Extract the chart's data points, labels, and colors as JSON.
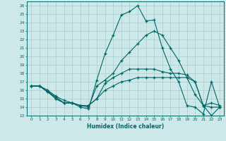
{
  "title": "",
  "xlabel": "Humidex (Indice chaleur)",
  "bg_color": "#cce8e8",
  "line_color": "#006666",
  "grid_color": "#aacccc",
  "x_values": [
    0,
    1,
    2,
    3,
    4,
    5,
    6,
    7,
    8,
    9,
    10,
    11,
    12,
    13,
    14,
    15,
    16,
    17,
    18,
    19,
    20,
    21,
    22,
    23
  ],
  "series": {
    "max": [
      16.5,
      16.5,
      16.0,
      15.0,
      14.5,
      14.5,
      14.0,
      13.8,
      17.2,
      20.3,
      22.5,
      24.9,
      25.3,
      26.0,
      24.2,
      24.3,
      21.0,
      18.5,
      17.0,
      14.2,
      14.0,
      13.2,
      17.0,
      14.0
    ],
    "avg2": [
      16.5,
      16.5,
      16.0,
      15.3,
      14.8,
      14.5,
      14.2,
      14.0,
      16.5,
      17.2,
      18.0,
      19.5,
      20.5,
      21.5,
      22.5,
      23.0,
      22.5,
      21.0,
      19.5,
      17.5,
      15.5,
      14.2,
      14.5,
      14.2
    ],
    "avg1": [
      16.5,
      16.5,
      15.8,
      15.2,
      14.5,
      14.5,
      14.2,
      14.2,
      15.0,
      16.8,
      17.5,
      18.0,
      18.5,
      18.5,
      18.5,
      18.5,
      18.2,
      18.0,
      18.0,
      17.8,
      17.0,
      14.2,
      14.0,
      14.0
    ],
    "min": [
      16.5,
      16.5,
      15.8,
      15.0,
      14.5,
      14.5,
      14.2,
      14.2,
      15.0,
      16.0,
      16.5,
      17.0,
      17.2,
      17.5,
      17.5,
      17.5,
      17.5,
      17.5,
      17.5,
      17.5,
      17.0,
      14.2,
      13.0,
      14.0
    ]
  },
  "ylim": [
    13,
    26.5
  ],
  "yticks": [
    13,
    14,
    15,
    16,
    17,
    18,
    19,
    20,
    21,
    22,
    23,
    24,
    25,
    26
  ],
  "xticks": [
    0,
    1,
    2,
    3,
    4,
    5,
    6,
    7,
    8,
    9,
    10,
    11,
    12,
    13,
    14,
    15,
    16,
    17,
    18,
    19,
    20,
    21,
    22,
    23
  ],
  "marker": "+",
  "markersize": 3.5,
  "linewidth": 0.8
}
